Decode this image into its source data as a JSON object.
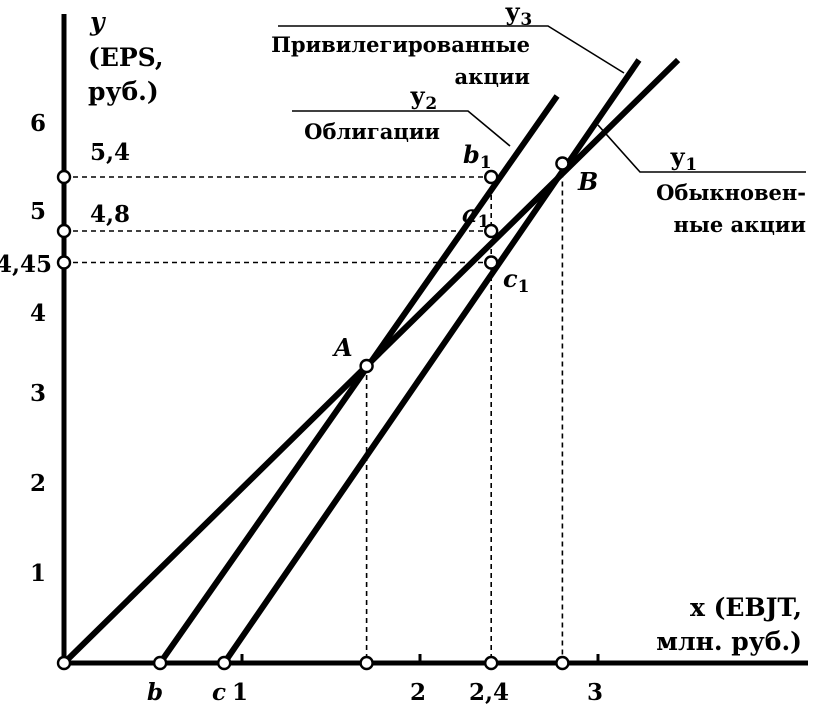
{
  "chart_data": {
    "type": "line",
    "title": "",
    "ylabel": {
      "var": "y",
      "line1": "(EPS,",
      "line2": "руб.)"
    },
    "xlabel": {
      "line1": "x (EBJT,",
      "line2": "млн. руб.)"
    },
    "xlim": [
      0,
      3.8
    ],
    "ylim": [
      0,
      6.8
    ],
    "x_ticks": [
      {
        "value": 1,
        "label": "1"
      },
      {
        "value": 2,
        "label": "2"
      },
      {
        "value": 3,
        "label": "3"
      }
    ],
    "y_ticks": [
      {
        "value": 1,
        "label": "1"
      },
      {
        "value": 2,
        "label": "2"
      },
      {
        "value": 3,
        "label": "3"
      },
      {
        "value": 4,
        "label": "4"
      },
      {
        "value": 5,
        "label": "5"
      },
      {
        "value": 6,
        "label": "6"
      }
    ],
    "series": [
      {
        "name": "у1",
        "caption": [
          "Обыкновен-",
          "ные акции"
        ],
        "x": [
          0,
          3.45
        ],
        "y": [
          0,
          6.7
        ]
      },
      {
        "name": "у2",
        "caption": [
          "Облигации"
        ],
        "x": [
          0.54,
          2.77
        ],
        "y": [
          0,
          6.3
        ]
      },
      {
        "name": "у3",
        "caption": [
          "Привилегированные",
          "акции"
        ],
        "x": [
          0.9,
          3.23
        ],
        "y": [
          0,
          6.7
        ]
      }
    ],
    "points": [
      {
        "name": "",
        "x": 0,
        "y": 0
      },
      {
        "name": "A",
        "x": 1.7,
        "y": 3.3
      },
      {
        "name": "B",
        "x": 2.8,
        "y": 5.55
      },
      {
        "name": "b1",
        "x": 2.4,
        "y": 5.4
      },
      {
        "name": "a1",
        "x": 2.4,
        "y": 4.8
      },
      {
        "name": "c1",
        "x": 2.4,
        "y": 4.45
      }
    ],
    "x_markers": [
      {
        "name": "b",
        "x": 0.54
      },
      {
        "name": "c",
        "x": 0.9
      },
      {
        "name": "",
        "x": 1.7
      },
      {
        "name": "2,4",
        "x": 2.4
      },
      {
        "name": "",
        "x": 2.8
      }
    ],
    "y_markers": [
      {
        "name": "5,4",
        "y": 5.4
      },
      {
        "name": "4,8",
        "y": 4.8
      },
      {
        "name": "4,45",
        "y": 4.45
      }
    ]
  }
}
